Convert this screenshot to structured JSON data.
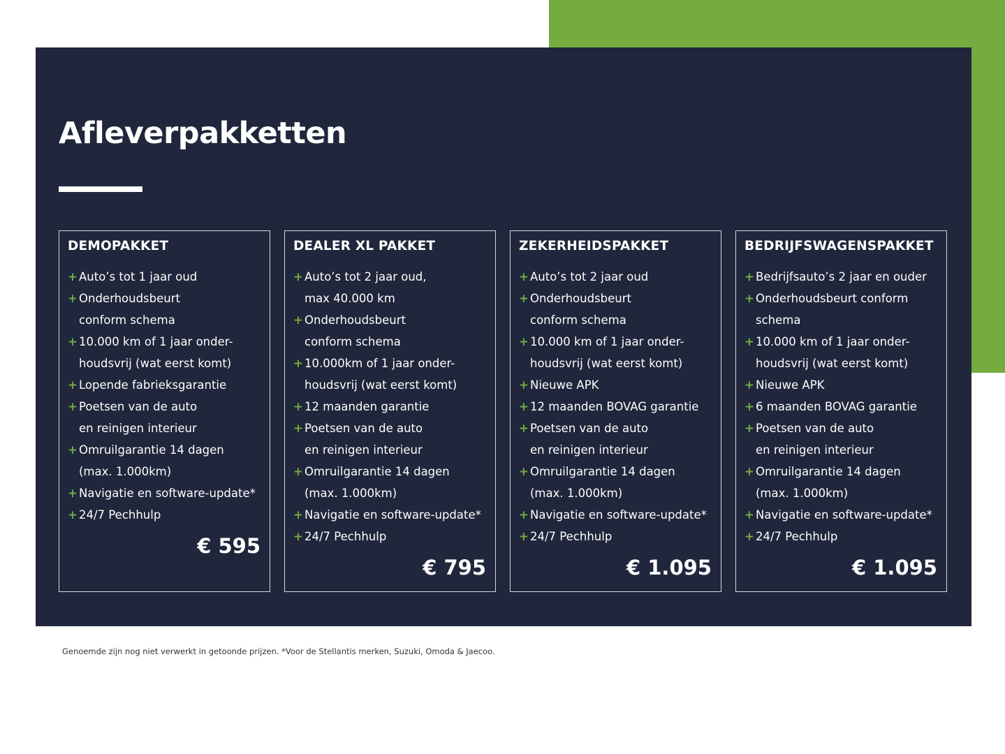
{
  "colors": {
    "navy": "#20263b",
    "green": "#74ac3f"
  },
  "title": "Afleverpakketten",
  "packages": [
    {
      "name": "DEMOPAKKET",
      "price": "€ 595",
      "items": [
        [
          "Auto’s tot 1 jaar oud"
        ],
        [
          "Onderhoudsbeurt",
          "conform schema"
        ],
        [
          "10.000 km of 1 jaar onder-",
          "houdsvrij (wat eerst komt)"
        ],
        [
          "Lopende fabrieksgarantie"
        ],
        [
          "Poetsen van de auto",
          "en reinigen interieur"
        ],
        [
          "Omruilgarantie 14 dagen",
          "(max. 1.000km)"
        ],
        [
          "Navigatie en software-update*"
        ],
        [
          "24/7 Pechhulp"
        ]
      ]
    },
    {
      "name": "DEALER XL PAKKET",
      "price": "€ 795",
      "items": [
        [
          "Auto’s tot 2 jaar oud,",
          "max 40.000 km"
        ],
        [
          "Onderhoudsbeurt",
          "conform schema"
        ],
        [
          "10.000km of 1 jaar onder-",
          "houdsvrij (wat eerst komt)"
        ],
        [
          "12 maanden garantie"
        ],
        [
          "Poetsen van de auto",
          "en reinigen interieur"
        ],
        [
          "Omruilgarantie 14 dagen",
          "(max. 1.000km)"
        ],
        [
          "Navigatie en software-update*"
        ],
        [
          "24/7 Pechhulp"
        ]
      ]
    },
    {
      "name": "ZEKERHEIDSPAKKET",
      "price": "€ 1.095",
      "items": [
        [
          "Auto’s tot 2 jaar oud"
        ],
        [
          "Onderhoudsbeurt",
          "conform schema"
        ],
        [
          "10.000 km of 1 jaar onder-",
          "houdsvrij (wat eerst komt)"
        ],
        [
          "Nieuwe APK"
        ],
        [
          "12 maanden BOVAG garantie"
        ],
        [
          "Poetsen van de auto",
          "en reinigen interieur"
        ],
        [
          "Omruilgarantie 14 dagen",
          "(max. 1.000km)"
        ],
        [
          "Navigatie en software-update*"
        ],
        [
          "24/7 Pechhulp"
        ]
      ]
    },
    {
      "name": "BEDRIJFSWAGENSPAKKET",
      "price": "€ 1.095",
      "items": [
        [
          "Bedrijfsauto’s 2 jaar en ouder"
        ],
        [
          "Onderhoudsbeurt conform",
          "schema"
        ],
        [
          "10.000 km of 1 jaar onder-",
          "houdsvrij (wat eerst komt)"
        ],
        [
          "Nieuwe APK"
        ],
        [
          "6 maanden BOVAG garantie"
        ],
        [
          "Poetsen van de auto",
          "en reinigen interieur"
        ],
        [
          "Omruilgarantie 14 dagen",
          "(max. 1.000km)"
        ],
        [
          "Navigatie en software-update*"
        ],
        [
          "24/7 Pechhulp"
        ]
      ]
    }
  ],
  "footnote": "Genoemde zijn nog niet verwerkt in getoonde prijzen. *Voor de Stellantis merken, Suzuki, Omoda & Jaecoo."
}
